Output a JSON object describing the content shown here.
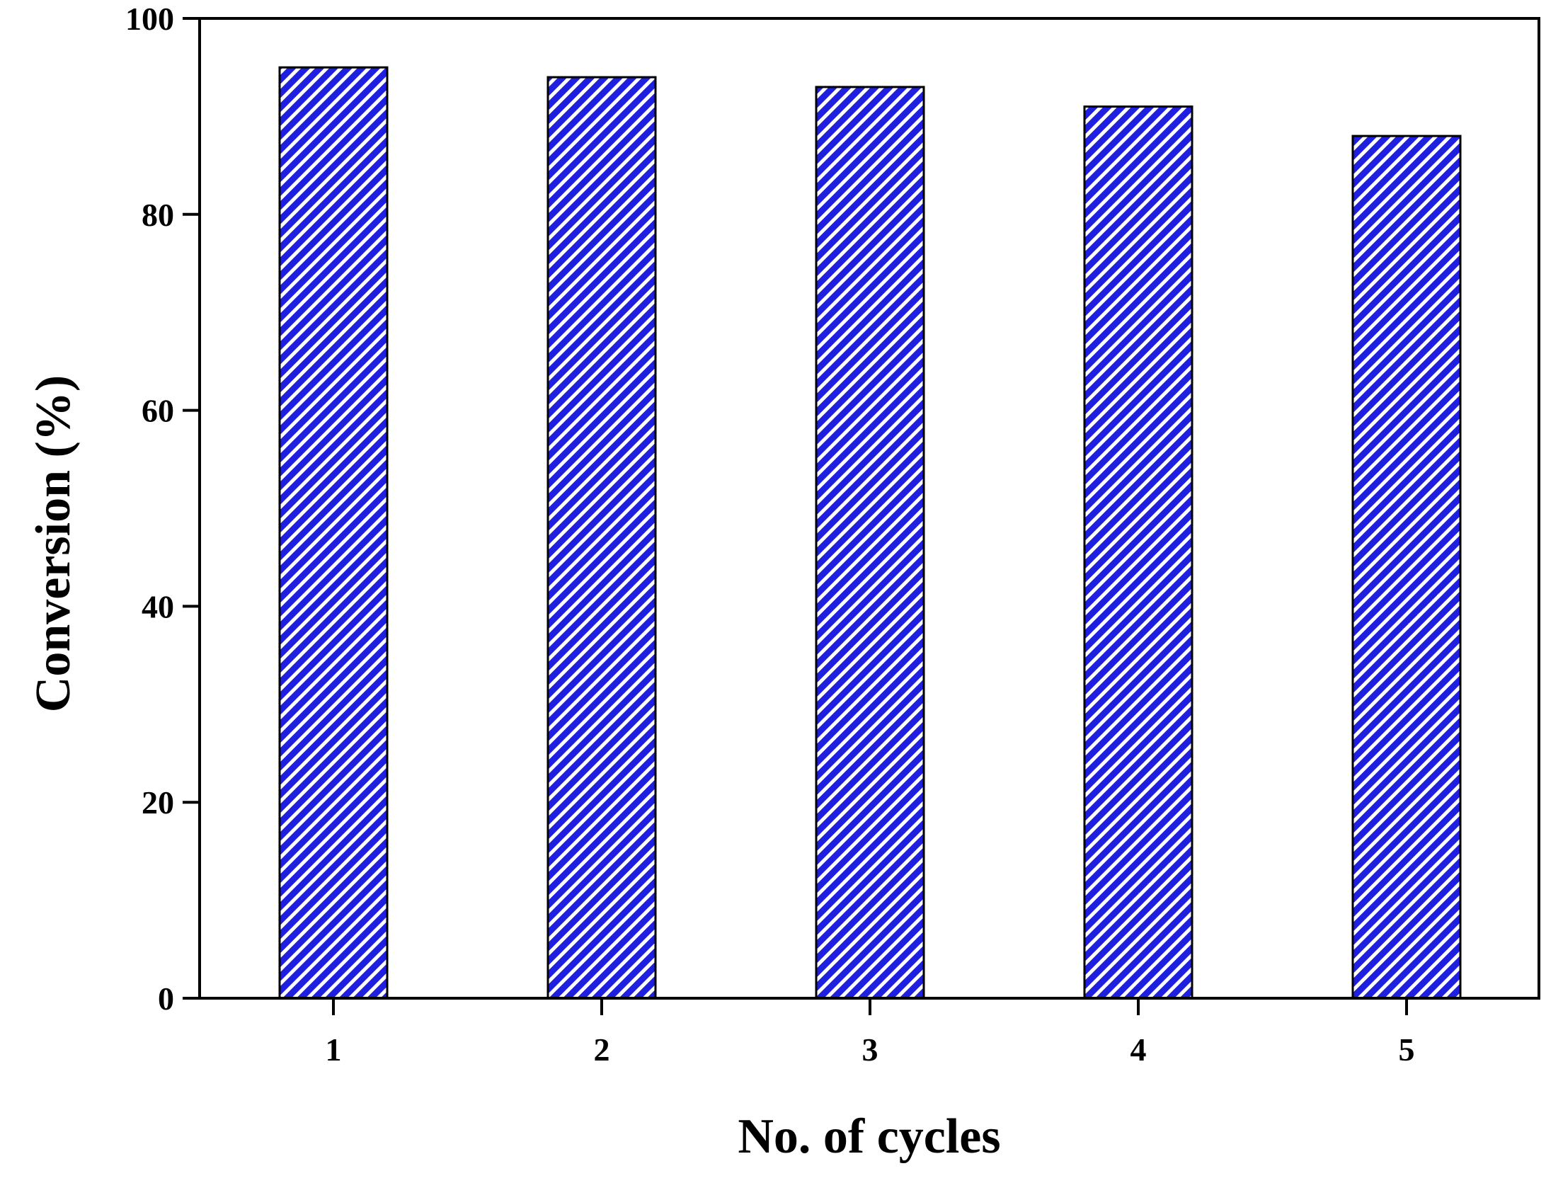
{
  "chart_data": {
    "type": "bar",
    "title": "",
    "xlabel": "No. of cycles",
    "ylabel": "Conversion (%)",
    "categories": [
      "1",
      "2",
      "3",
      "4",
      "5"
    ],
    "values": [
      95,
      94,
      93,
      91,
      88
    ],
    "ylim": [
      0,
      100
    ],
    "yticks": [
      "0",
      "20",
      "40",
      "60",
      "80",
      "100"
    ],
    "grid": false,
    "legend": "none",
    "bar_color": "#1f1fe0",
    "bar_hatch_color": "#ffffff",
    "bar_edge_color": "#000000"
  }
}
